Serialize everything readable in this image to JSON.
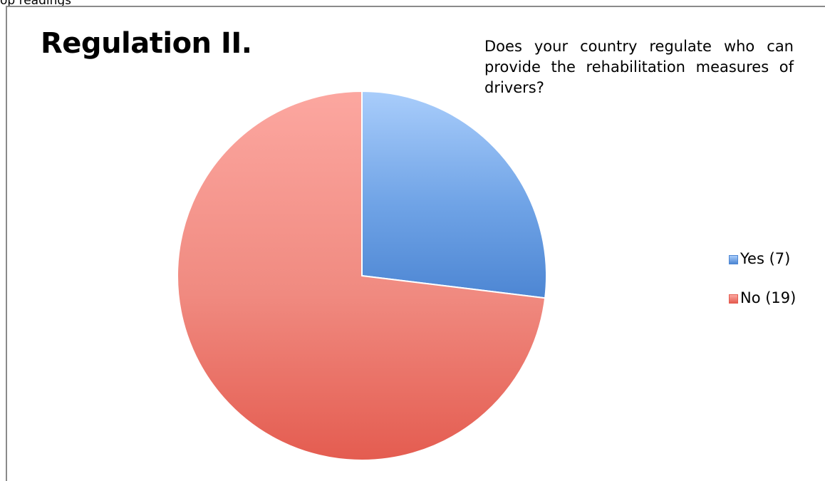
{
  "page": {
    "top_caption": "op readings"
  },
  "chart_data": {
    "type": "pie",
    "title": "Regulation II.",
    "subtitle": "Does your country regulate who can provide the rehabilitation measures of drivers?",
    "legend_position": "right",
    "slices": [
      {
        "label": "Yes (7)",
        "value": 7,
        "color": "#6fa3e6",
        "light": "#a9cdfb",
        "dark": "#4d86d3"
      },
      {
        "label": "No (19)",
        "value": 19,
        "color": "#f08a80",
        "light": "#fca7a0",
        "dark": "#e45c50"
      }
    ]
  }
}
